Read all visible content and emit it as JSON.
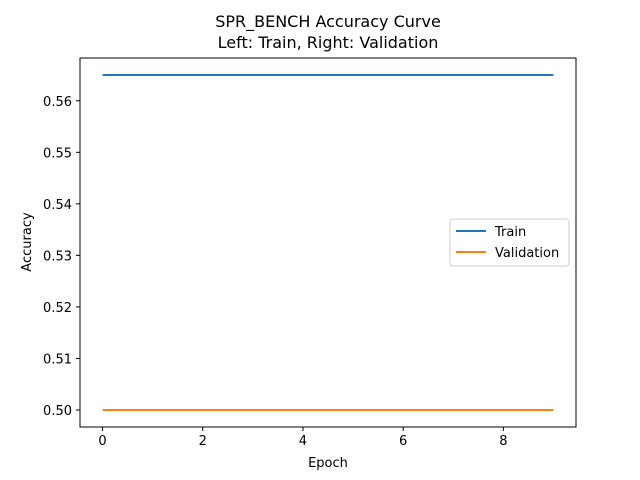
{
  "chart_data": {
    "type": "line",
    "title": "SPR_BENCH Accuracy Curve",
    "subtitle": "Left: Train, Right: Validation",
    "xlabel": "Epoch",
    "ylabel": "Accuracy",
    "xlim": [
      -0.45,
      9.45
    ],
    "ylim": [
      0.4967,
      0.5683
    ],
    "xticks": [
      0,
      2,
      4,
      6,
      8
    ],
    "xtick_labels": [
      "0",
      "2",
      "4",
      "6",
      "8"
    ],
    "yticks": [
      0.5,
      0.51,
      0.52,
      0.53,
      0.54,
      0.55,
      0.56
    ],
    "ytick_labels": [
      "0.50",
      "0.51",
      "0.52",
      "0.53",
      "0.54",
      "0.55",
      "0.56"
    ],
    "x": [
      0,
      1,
      2,
      3,
      4,
      5,
      6,
      7,
      8,
      9
    ],
    "series": [
      {
        "name": "Train",
        "color": "#1f77b4",
        "values": [
          0.565,
          0.565,
          0.565,
          0.565,
          0.565,
          0.565,
          0.565,
          0.565,
          0.565,
          0.565
        ]
      },
      {
        "name": "Validation",
        "color": "#ff7f0e",
        "values": [
          0.5,
          0.5,
          0.5,
          0.5,
          0.5,
          0.5,
          0.5,
          0.5,
          0.5,
          0.5
        ]
      }
    ],
    "grid": false,
    "legend": "center-right"
  }
}
